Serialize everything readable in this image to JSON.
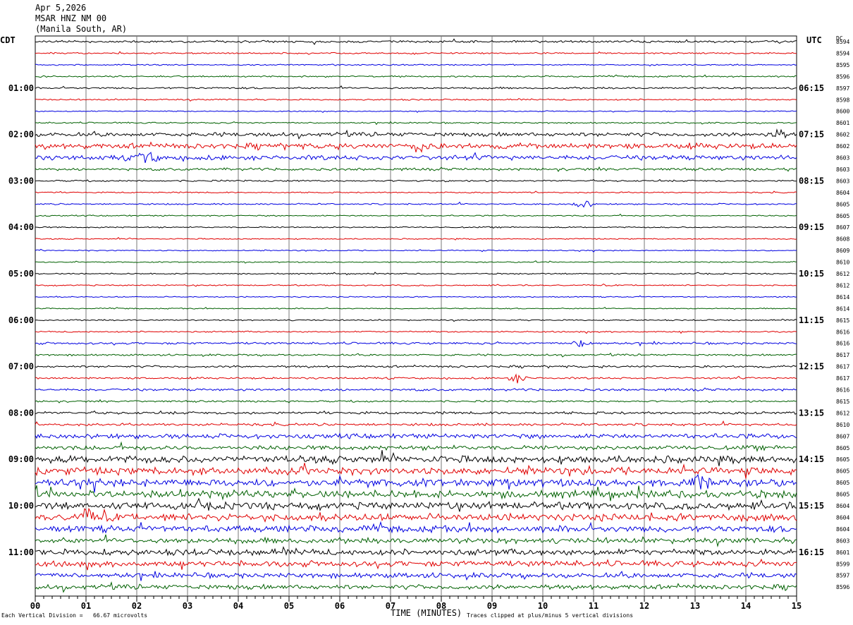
{
  "header": {
    "date": "Apr 5,2026",
    "station": "MSAR HNZ NM 00",
    "location": "(Manila South, AR)"
  },
  "left_axis_label": "CDT",
  "right_axis_label": "UTC",
  "dc_label": "DC",
  "footer": {
    "scale": "Each Vertical Division =   66.67 microvolts",
    "xlabel": "TIME (MINUTES)",
    "clip": "Traces clipped at plus/minus 5 vertical divisions"
  },
  "colors": [
    "#000000",
    "#e00000",
    "#0000e0",
    "#006000"
  ],
  "chart_data": {
    "type": "line",
    "title": "",
    "xlabel": "TIME (MINUTES)",
    "xlim": [
      0,
      15
    ],
    "x_ticks": [
      "00",
      "01",
      "02",
      "03",
      "04",
      "05",
      "06",
      "07",
      "08",
      "09",
      "10",
      "11",
      "12",
      "13",
      "14",
      "15"
    ],
    "left_times": [
      "01:00",
      "02:00",
      "03:00",
      "04:00",
      "05:00",
      "06:00",
      "07:00",
      "08:00",
      "09:00",
      "10:00",
      "11:00"
    ],
    "right_times": [
      "06:15",
      "07:15",
      "08:15",
      "09:15",
      "10:15",
      "11:15",
      "12:15",
      "13:15",
      "14:15",
      "15:15",
      "16:15"
    ],
    "dc_offsets": [
      "8594",
      "8594",
      "8595",
      "8596",
      "8597",
      "8598",
      "8600",
      "8601",
      "8602",
      "8602",
      "8603",
      "8603",
      "8603",
      "8604",
      "8605",
      "8605",
      "8607",
      "8608",
      "8609",
      "8610",
      "8612",
      "8612",
      "8614",
      "8614",
      "8615",
      "8616",
      "8616",
      "8617",
      "8617",
      "8617",
      "8616",
      "8615",
      "8612",
      "8610",
      "8607",
      "8605",
      "8605",
      "8605",
      "8605",
      "8605",
      "8604",
      "8604",
      "8604",
      "8603",
      "8601",
      "8599",
      "8597",
      "8596"
    ],
    "trace_noise": [
      1.2,
      0.8,
      0.7,
      0.8,
      1.0,
      0.8,
      0.6,
      0.8,
      2.2,
      3.0,
      2.6,
      1.4,
      0.9,
      0.7,
      0.8,
      0.7,
      0.7,
      0.6,
      0.6,
      0.6,
      0.7,
      0.7,
      0.6,
      0.6,
      0.7,
      0.8,
      1.2,
      1.0,
      1.2,
      1.0,
      1.3,
      1.0,
      1.4,
      1.4,
      2.6,
      2.4,
      4.0,
      4.0,
      4.2,
      4.2,
      4.0,
      4.0,
      3.6,
      3.0,
      3.4,
      3.2,
      2.8,
      2.6
    ],
    "events": [
      {
        "trace": 8,
        "minute": 14.6,
        "amp": 7
      },
      {
        "trace": 9,
        "minute": 7.6,
        "amp": 8
      },
      {
        "trace": 10,
        "minute": 2.2,
        "amp": 9
      },
      {
        "trace": 14,
        "minute": 10.8,
        "amp": 6
      },
      {
        "trace": 26,
        "minute": 10.8,
        "amp": 6
      },
      {
        "trace": 29,
        "minute": 9.5,
        "amp": 6
      },
      {
        "trace": 38,
        "minute": 13.1,
        "amp": 8
      },
      {
        "trace": 41,
        "minute": 1.0,
        "amp": 9
      }
    ]
  }
}
